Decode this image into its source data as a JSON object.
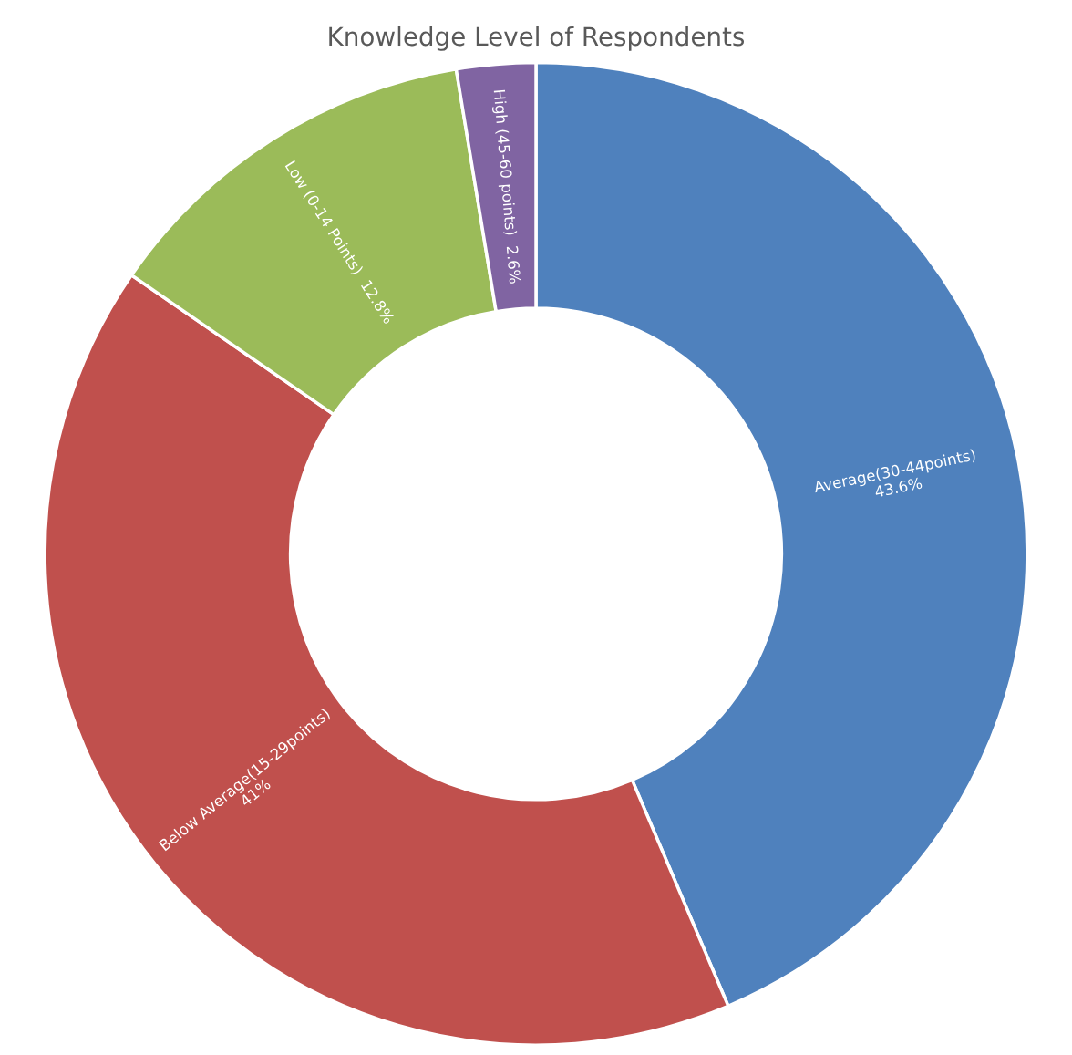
{
  "chart_data": {
    "type": "donut",
    "title": "Knowledge Level of Respondents",
    "categories": [
      "Average(30-44points)",
      "Below Average(15-29points)",
      "Low (0-14 Points)",
      "High (45-60 points)"
    ],
    "values": [
      43.6,
      41,
      12.8,
      2.6
    ],
    "value_labels": [
      "43.6%",
      "41%",
      "12.8%",
      "2.6%"
    ],
    "colors": [
      "#4f81bd",
      "#c0504d",
      "#9bbb59",
      "#8064a2"
    ],
    "legend": false
  }
}
